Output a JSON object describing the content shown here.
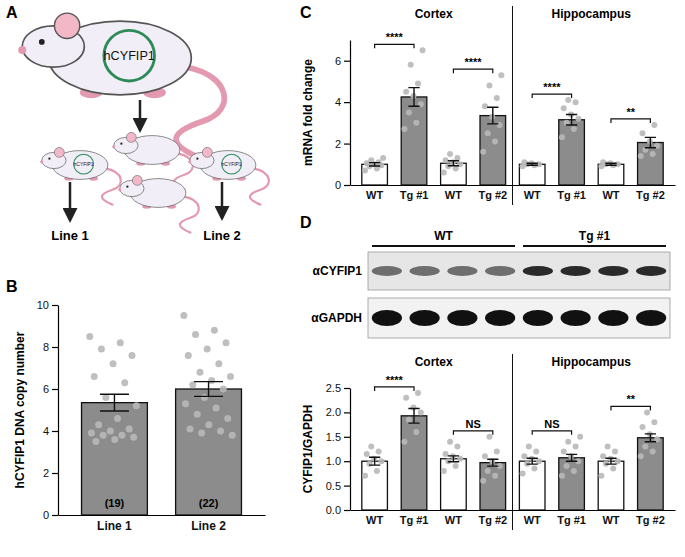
{
  "panel_labels": [
    "A",
    "B",
    "C",
    "D"
  ],
  "diagram": {
    "plasmid_label": "hCYFIP1",
    "lines": [
      "Line 1",
      "Line 2"
    ]
  },
  "blot": {
    "groups": [
      "WT",
      "Tg #1"
    ],
    "rows": [
      "αCYFIP1",
      "αGAPDH"
    ]
  },
  "chart_data": [
    {
      "type": "bar",
      "y_label": "hCYFIP1 DNA copy number",
      "categories": [
        "Line 1",
        "Line 2"
      ],
      "values": [
        5.35,
        6.0
      ],
      "errors": [
        0.4,
        0.35
      ],
      "points": [
        [
          8.5,
          8.2,
          7.9,
          7.6,
          7.2,
          6.6,
          6.3,
          5.6,
          5.2,
          4.6,
          4.3,
          4.1,
          4.0,
          3.9,
          3.8,
          3.8,
          3.7,
          3.6,
          3.5
        ],
        [
          9.5,
          8.8,
          8.6,
          8.2,
          7.9,
          7.6,
          7.2,
          6.8,
          6.6,
          6.4,
          6.2,
          6.0,
          5.6,
          5.3,
          5.1,
          4.8,
          4.6,
          4.3,
          4.1,
          4.0,
          3.9,
          3.8
        ]
      ],
      "n_labels": [
        "(19)",
        "(22)"
      ],
      "color": "#8c8c8c",
      "ylim": [
        0,
        10
      ],
      "yticks": [
        0,
        2,
        4,
        6,
        8,
        10
      ]
    },
    {
      "type": "bar",
      "y_label": "mRNA fold change",
      "facets": [
        "Cortex",
        "Hippocampus"
      ],
      "categories": [
        "WT",
        "Tg #1",
        "WT",
        "Tg #2",
        "WT",
        "Tg #1",
        "WT",
        "Tg #2"
      ],
      "values": [
        1.0,
        4.25,
        1.05,
        3.35,
        1.0,
        3.15,
        1.0,
        2.05
      ],
      "errors": [
        0.08,
        0.45,
        0.12,
        0.4,
        0.05,
        0.25,
        0.05,
        0.25
      ],
      "points": [
        [
          0.7,
          0.8,
          0.9,
          0.95,
          1.0,
          1.05,
          1.1,
          1.2,
          1.3
        ],
        [
          2.7,
          3.0,
          3.5,
          3.9,
          4.3,
          4.5,
          4.9,
          5.8,
          6.5
        ],
        [
          0.6,
          0.8,
          0.9,
          1.0,
          1.1,
          1.2,
          1.3,
          1.5
        ],
        [
          1.6,
          2.1,
          2.5,
          2.9,
          3.3,
          3.8,
          4.2,
          4.8,
          5.3
        ],
        [
          0.9,
          0.95,
          1.0,
          1.0,
          1.05,
          1.1
        ],
        [
          2.3,
          2.7,
          3.0,
          3.2,
          3.4,
          3.7,
          4.0,
          4.1
        ],
        [
          0.9,
          0.95,
          1.0,
          1.0,
          1.05,
          1.1
        ],
        [
          1.4,
          1.5,
          1.7,
          1.9,
          2.1,
          2.5,
          2.9
        ]
      ],
      "comparisons": [
        "****",
        "****",
        "****",
        "**"
      ],
      "colors": [
        "#ffffff",
        "#8c8c8c",
        "#ffffff",
        "#8c8c8c",
        "#ffffff",
        "#8c8c8c",
        "#ffffff",
        "#8c8c8c"
      ],
      "ylim": [
        0,
        7
      ],
      "yticks": [
        0,
        2,
        4,
        6
      ]
    },
    {
      "type": "bar",
      "y_label": "CYFIP1/GAPDH",
      "facets": [
        "Cortex",
        "Hippocampus"
      ],
      "categories": [
        "WT",
        "Tg #1",
        "WT",
        "Tg #2",
        "WT",
        "Tg #1",
        "WT",
        "Tg #2"
      ],
      "values": [
        1.0,
        1.93,
        1.05,
        0.97,
        1.0,
        1.07,
        1.0,
        1.48
      ],
      "errors": [
        0.08,
        0.15,
        0.06,
        0.07,
        0.06,
        0.07,
        0.06,
        0.08
      ],
      "points": [
        [
          0.7,
          0.8,
          0.95,
          1.0,
          1.05,
          1.15,
          1.2,
          1.3
        ],
        [
          1.4,
          1.6,
          1.85,
          2.0,
          2.1,
          2.3,
          2.4
        ],
        [
          0.8,
          0.9,
          1.0,
          1.05,
          1.1,
          1.15,
          1.3,
          1.4
        ],
        [
          0.6,
          0.7,
          0.8,
          0.9,
          1.0,
          1.1,
          1.2,
          1.5
        ],
        [
          0.75,
          0.85,
          0.95,
          1.0,
          1.05,
          1.1,
          1.2,
          1.3
        ],
        [
          0.7,
          0.8,
          0.9,
          1.0,
          1.1,
          1.2,
          1.3,
          1.4,
          1.5
        ],
        [
          0.7,
          0.85,
          0.95,
          1.0,
          1.05,
          1.1,
          1.2,
          1.3
        ],
        [
          1.1,
          1.2,
          1.3,
          1.45,
          1.55,
          1.7,
          1.8,
          2.0
        ]
      ],
      "comparisons": [
        "****",
        "NS",
        "NS",
        "**"
      ],
      "colors": [
        "#ffffff",
        "#8c8c8c",
        "#ffffff",
        "#8c8c8c",
        "#ffffff",
        "#8c8c8c",
        "#ffffff",
        "#8c8c8c"
      ],
      "ylim": [
        0,
        2.5
      ],
      "yticks": [
        {
          "value": 0,
          "label": "0.0"
        },
        0.5,
        {
          "value": 1,
          "label": "1.0"
        },
        1.5,
        {
          "value": 2,
          "label": "2.0"
        },
        2.5
      ]
    }
  ]
}
